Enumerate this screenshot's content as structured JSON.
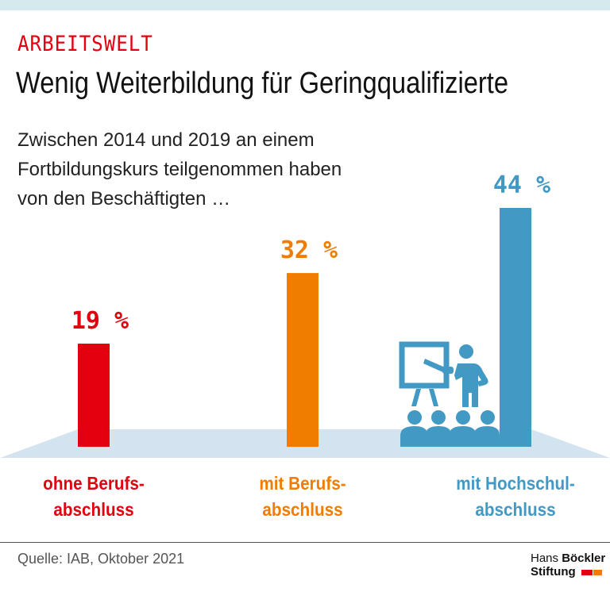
{
  "kicker": "ARBEITSWELT",
  "title": "Wenig Weiterbildung für Geringqualifizierte",
  "subtitle": [
    "Zwischen 2014 und 2019 an einem",
    "Fortbildungskurs teilgenommen haben",
    "von den Beschäftigten …"
  ],
  "chart_data": {
    "type": "bar",
    "categories": [
      "ohne Berufs-abschluss",
      "mit Berufs-abschluss",
      "mit Hochschul-abschluss"
    ],
    "category_lines": [
      [
        "ohne Berufs-",
        "abschluss"
      ],
      [
        "mit Berufs-",
        "abschluss"
      ],
      [
        "mit Hochschul-",
        "abschluss"
      ]
    ],
    "values": [
      19,
      32,
      44
    ],
    "value_labels": [
      "19 %",
      "32 %",
      "44 %"
    ],
    "unit": "%",
    "colors": [
      "#e3000f",
      "#f07d00",
      "#4299c4"
    ],
    "grid": false,
    "ylim": [
      0,
      44
    ]
  },
  "icon": "presenter-with-audience-icon",
  "source": "Quelle: IAB, Oktober 2021",
  "logo": {
    "line1a": "Hans ",
    "line1b": "Böckler",
    "line2": "Stiftung",
    "colors": [
      "#e3000f",
      "#f07d00"
    ]
  }
}
